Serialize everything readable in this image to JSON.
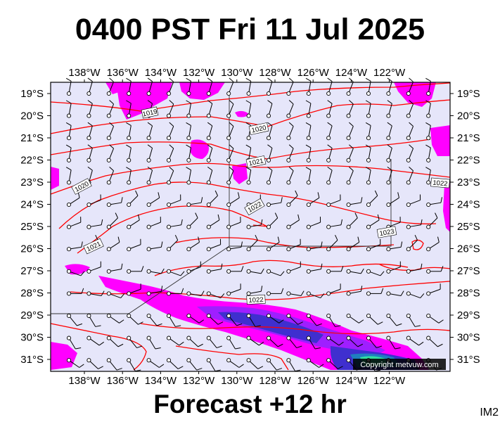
{
  "title": "0400 PST Fri 11 Jul 2025",
  "footer": "Forecast +12 hr",
  "corner_code": "IM2",
  "copyright": "Copyright metvuw.com",
  "lon_labels": [
    "138°W",
    "136°W",
    "134°W",
    "132°W",
    "130°W",
    "128°W",
    "126°W",
    "124°W",
    "122°W"
  ],
  "lat_labels": [
    "19°S",
    "20°S",
    "21°S",
    "22°S",
    "23°S",
    "24°S",
    "25°S",
    "26°S",
    "27°S",
    "28°S",
    "29°S",
    "30°S",
    "31°S"
  ],
  "isobar_labels": [
    "1019",
    "1020",
    "1021",
    "1020",
    "1022",
    "1023",
    "1022",
    "1021",
    "1022"
  ],
  "colors": {
    "background": "#e6e6fa",
    "isobar": "#ff0000",
    "rain_light": "#ff00ff",
    "rain_medium": "#9f1fff",
    "rain_heavy": "#3f2fcf",
    "rain_core": "#1f7fbf",
    "rain_peak": "#2fdfa0"
  }
}
